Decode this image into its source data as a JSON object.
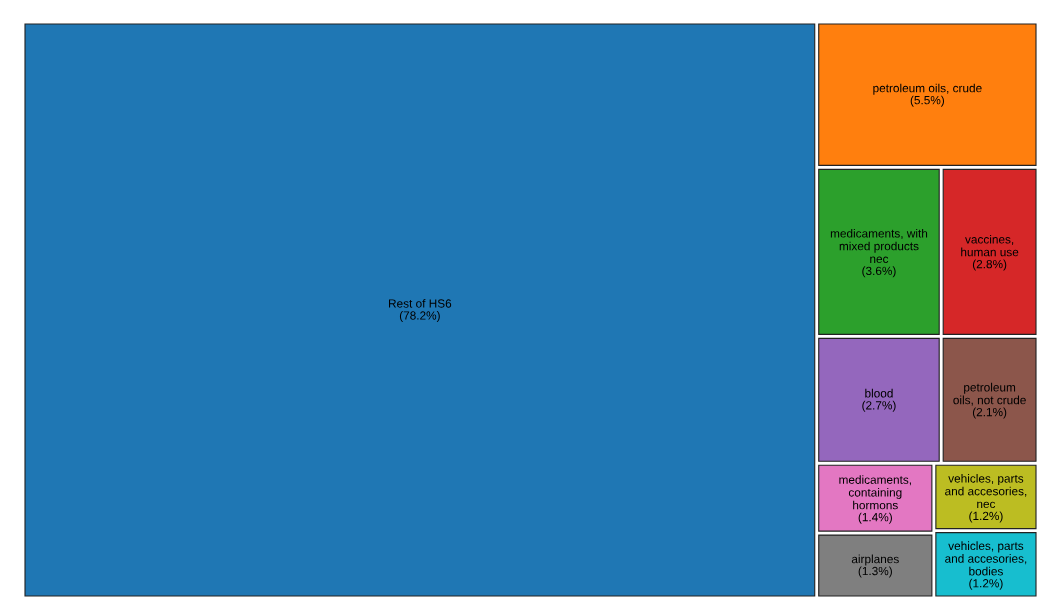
{
  "chart_data": {
    "type": "other",
    "categories": [
      "Rest of HS6",
      "petroleum oils, crude",
      "medicaments, with mixed products nec",
      "vaccines, human use",
      "blood",
      "petroleum oils, not crude",
      "medicaments, containing hormons",
      "airplanes",
      "vehicles, parts and accesories, nec",
      "vehicles, parts and accesories, bodies"
    ],
    "values": [
      78.2,
      5.5,
      3.6,
      2.8,
      2.7,
      2.1,
      1.4,
      1.3,
      1.2,
      1.2
    ],
    "value_labels": [
      "(78.2%)",
      "(5.5%)",
      "(3.6%)",
      "(2.8%)",
      "(2.7%)",
      "(2.1%)",
      "(1.4%)",
      "(1.3%)",
      "(1.2%)",
      "(1.2%)"
    ],
    "colors": [
      "#1f77b4",
      "#ff7f0e",
      "#2ca02c",
      "#d62728",
      "#9467bd",
      "#8c564b",
      "#e377c2",
      "#7f7f7f",
      "#bcbd22",
      "#17becf"
    ]
  }
}
